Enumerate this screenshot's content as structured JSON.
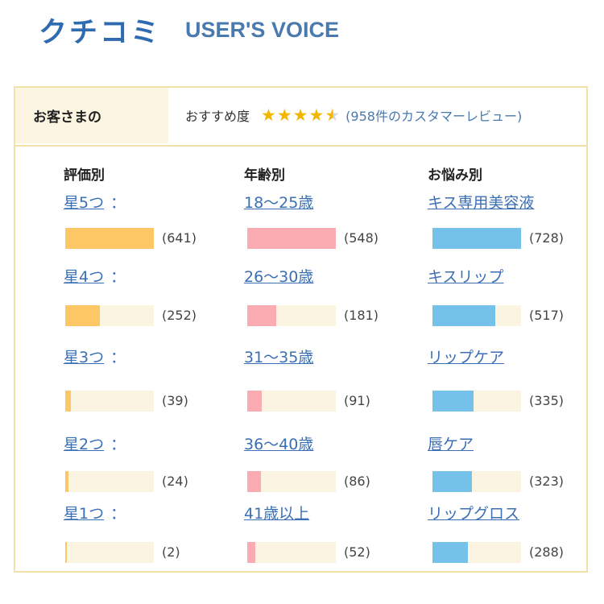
{
  "header": {
    "title_jp": "クチコミ",
    "title_en": "USER'S VOICE"
  },
  "summary": {
    "tab_label": "お客さまの",
    "recommend_label": "おすすめ度",
    "star_icons": [
      "star-full-icon",
      "star-full-icon",
      "star-full-icon",
      "star-full-icon",
      "star-half-icon"
    ],
    "star_glyph": "★",
    "review_count_text": "(958件のカスタマーレビュー)"
  },
  "colors": {
    "rating_bar": "#fdc766",
    "age_bar": "#fbacb2",
    "concern_bar": "#74c2ea",
    "track": "#faf4e0",
    "link": "#3a6fb3"
  },
  "columns": [
    {
      "heading": "評価別",
      "items": [
        {
          "label": "星5つ",
          "suffix": "：",
          "count": 641,
          "count_text": "(641)"
        },
        {
          "label": "星4つ",
          "suffix": "：",
          "count": 252,
          "count_text": "(252)"
        },
        {
          "label": "星3つ",
          "suffix": "：",
          "count": 39,
          "count_text": "(39)"
        },
        {
          "label": "星2つ",
          "suffix": "：",
          "count": 24,
          "count_text": "(24)"
        },
        {
          "label": "星1つ",
          "suffix": "：",
          "count": 2,
          "count_text": "(2)"
        }
      ]
    },
    {
      "heading": "年齢別",
      "items": [
        {
          "label": "18～25歳",
          "count": 548,
          "count_text": "(548)"
        },
        {
          "label": "26～30歳",
          "count": 181,
          "count_text": "(181)"
        },
        {
          "label": "31～35歳",
          "count": 91,
          "count_text": "(91)"
        },
        {
          "label": "36～40歳",
          "count": 86,
          "count_text": "(86)"
        },
        {
          "label": "41歳以上",
          "count": 52,
          "count_text": "(52)"
        }
      ]
    },
    {
      "heading": "お悩み別",
      "items": [
        {
          "label": "キス専用美容液",
          "count": 728,
          "count_text": "(728)"
        },
        {
          "label": "キスリップ",
          "count": 517,
          "count_text": "(517)"
        },
        {
          "label": "リップケア",
          "count": 335,
          "count_text": "(335)"
        },
        {
          "label": "唇ケア",
          "count": 323,
          "count_text": "(323)"
        },
        {
          "label": "リップグロス",
          "count": 288,
          "count_text": "(288)"
        }
      ]
    }
  ]
}
